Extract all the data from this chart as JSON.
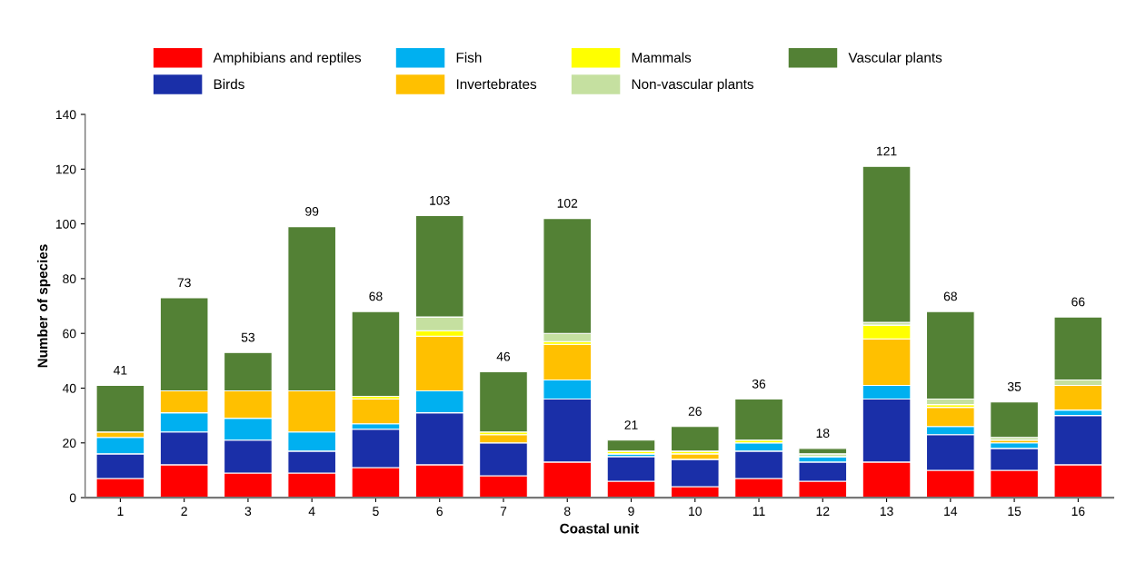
{
  "chart_data": {
    "type": "bar",
    "stacked": true,
    "xlabel": "Coastal unit",
    "ylabel": "Number of species",
    "categories": [
      "1",
      "2",
      "3",
      "4",
      "5",
      "6",
      "7",
      "8",
      "9",
      "10",
      "11",
      "12",
      "13",
      "14",
      "15",
      "16"
    ],
    "series": [
      {
        "name": "Amphibians and reptiles",
        "color": "#ff0000",
        "values": [
          7,
          12,
          9,
          9,
          11,
          12,
          8,
          13,
          6,
          4,
          7,
          6,
          13,
          10,
          10,
          12
        ]
      },
      {
        "name": "Birds",
        "color": "#1a2fa8",
        "values": [
          9,
          12,
          12,
          8,
          14,
          19,
          12,
          23,
          9,
          10,
          10,
          7,
          23,
          13,
          8,
          18
        ]
      },
      {
        "name": "Fish",
        "color": "#00b0f0",
        "values": [
          6,
          7,
          8,
          7,
          2,
          8,
          0,
          7,
          1,
          0,
          3,
          2,
          5,
          3,
          2,
          2
        ]
      },
      {
        "name": "Invertebrates",
        "color": "#ffc000",
        "values": [
          2,
          8,
          10,
          15,
          9,
          20,
          3,
          13,
          0,
          2,
          0,
          0,
          17,
          7,
          1,
          9
        ]
      },
      {
        "name": "Mammals",
        "color": "#ffff00",
        "values": [
          0,
          0,
          0,
          0,
          1,
          2,
          1,
          1,
          1,
          1,
          1,
          0,
          5,
          1,
          0,
          0
        ]
      },
      {
        "name": "Non-vascular plants",
        "color": "#c5e0a0",
        "values": [
          0,
          0,
          0,
          0,
          0,
          5,
          0,
          3,
          0,
          0,
          0,
          1,
          1,
          2,
          1,
          2
        ]
      },
      {
        "name": "Vascular plants",
        "color": "#538135",
        "values": [
          17,
          34,
          14,
          60,
          31,
          37,
          22,
          42,
          4,
          9,
          15,
          2,
          57,
          32,
          13,
          23
        ]
      }
    ],
    "totals": [
      "41",
      "73",
      "53",
      "99",
      "68",
      "103",
      "46",
      "102",
      "21",
      "26",
      "36",
      "18",
      "121",
      "68",
      "35",
      "66"
    ],
    "ylim": [
      0,
      140
    ],
    "yticks": [
      0,
      20,
      40,
      60,
      80,
      100,
      120,
      140
    ],
    "grid": false,
    "legend": "top"
  }
}
